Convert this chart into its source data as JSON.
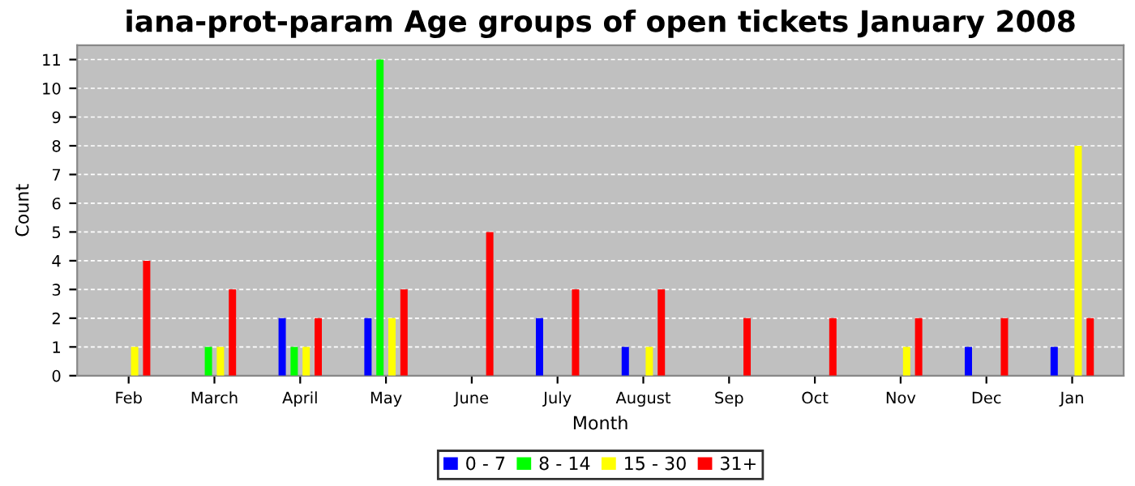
{
  "chart_data": {
    "type": "bar",
    "title": "iana-prot-param Age groups of open tickets January 2008",
    "xlabel": "Month",
    "ylabel": "Count",
    "categories": [
      "Feb",
      "March",
      "April",
      "May",
      "June",
      "July",
      "August",
      "Sep",
      "Oct",
      "Nov",
      "Dec",
      "Jan"
    ],
    "series": [
      {
        "name": "0 - 7",
        "color": "#0000ff",
        "values": [
          0,
          0,
          2,
          2,
          0,
          2,
          1,
          0,
          0,
          0,
          1,
          1
        ]
      },
      {
        "name": "8 - 14",
        "color": "#00ff00",
        "values": [
          0,
          1,
          1,
          11,
          0,
          0,
          0,
          0,
          0,
          0,
          0,
          0
        ]
      },
      {
        "name": "15 - 30",
        "color": "#ffff00",
        "values": [
          1,
          1,
          1,
          2,
          0,
          0,
          1,
          0,
          0,
          1,
          0,
          8
        ]
      },
      {
        "name": "31+",
        "color": "#ff0000",
        "values": [
          4,
          3,
          2,
          3,
          5,
          3,
          3,
          2,
          2,
          2,
          2,
          2
        ]
      }
    ],
    "ylim": [
      0,
      11.5
    ],
    "yticks": [
      0,
      1,
      2,
      3,
      4,
      5,
      6,
      7,
      8,
      9,
      10,
      11
    ],
    "grid": "y",
    "legend": "bottom"
  }
}
